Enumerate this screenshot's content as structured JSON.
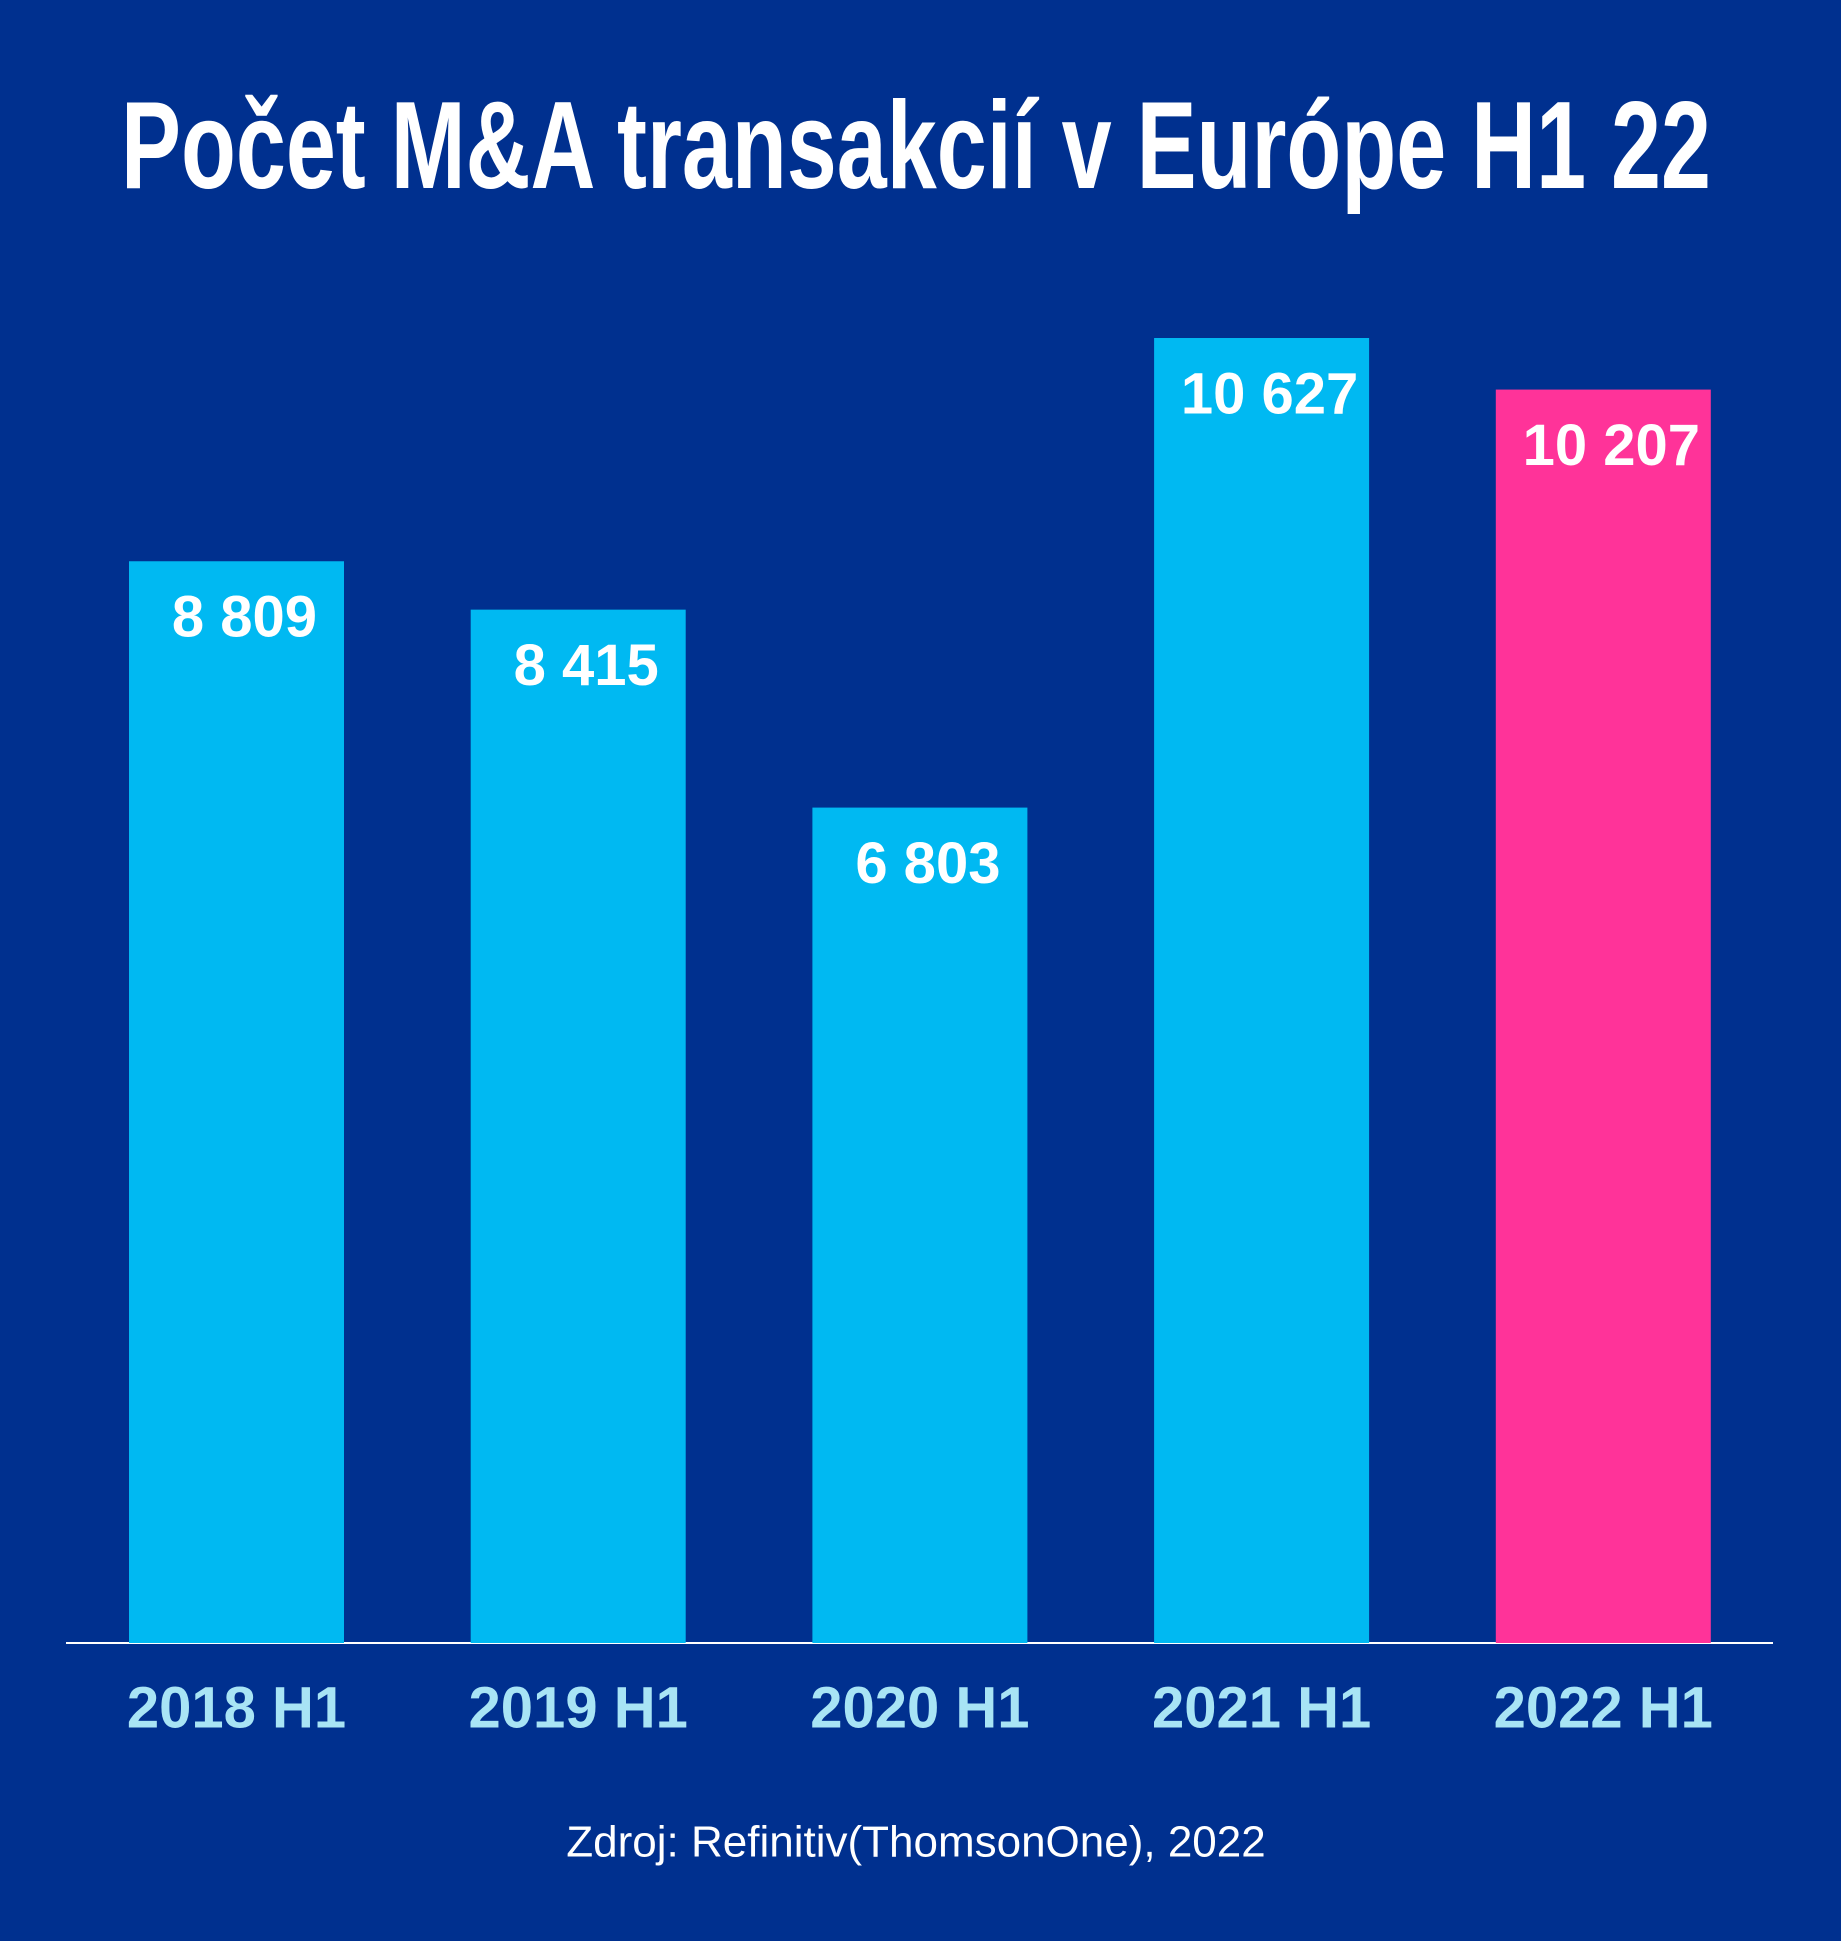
{
  "chart_data": {
    "type": "bar",
    "title": "Počet M&A transakcií v Európe H1 22",
    "categories": [
      "2018 H1",
      "2019 H1",
      "2020 H1",
      "2021 H1",
      "2022 H1"
    ],
    "values": [
      8809,
      8415,
      6803,
      10627,
      10207
    ],
    "value_labels": [
      "8 809",
      "8 415",
      "6 803",
      "10 627",
      "10 207"
    ],
    "colors": [
      "#00b9f2",
      "#00b9f2",
      "#00b9f2",
      "#00b9f2",
      "#ff3399"
    ],
    "source": "Zdroj: Refinitiv(ThomsonOne), 2022"
  }
}
